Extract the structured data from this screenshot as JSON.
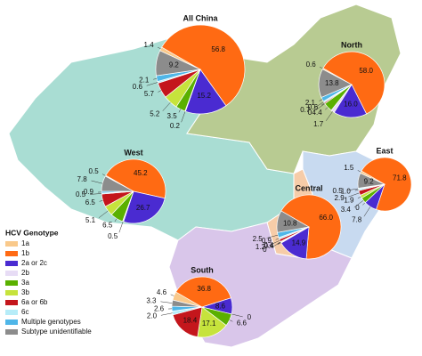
{
  "legend": {
    "title": "HCV Genotype",
    "categories": [
      "1a",
      "1b",
      "2a or 2c",
      "2b",
      "3a",
      "3b",
      "6a or 6b",
      "6c",
      "Multiple genotypes",
      "Subtype unidentifiable"
    ],
    "colors": [
      "#f9c98b",
      "#ff6a13",
      "#4a2bd1",
      "#e7dcf5",
      "#5ab000",
      "#c6e33c",
      "#c4161c",
      "#b6ecf8",
      "#4fb6e8",
      "#8c8c8c"
    ]
  },
  "chart_data": [
    {
      "type": "pie",
      "title": "All China",
      "values": [
        1.4,
        56.8,
        15.2,
        0.2,
        3.5,
        5.2,
        5.7,
        0.6,
        2.1,
        9.2
      ],
      "value_labels": [
        "1.4",
        "56.8",
        "15.2",
        "0.2",
        "3.5",
        "5.2",
        "5.7",
        "0.6",
        "2.1",
        "9.2"
      ]
    },
    {
      "type": "pie",
      "title": "North",
      "values": [
        0.6,
        58.0,
        16.0,
        1.7,
        4.4,
        0,
        0.6,
        0.7,
        2.1,
        13.8
      ],
      "value_labels": [
        "0.6",
        "58.0",
        "16.0",
        "1.7",
        "4.4",
        "0",
        "0.6",
        "0.7",
        "2.1",
        "13.8"
      ]
    },
    {
      "type": "pie",
      "title": "West",
      "values": [
        0.5,
        45.2,
        26.7,
        0.5,
        6.5,
        5.1,
        6.5,
        0.5,
        0.9,
        7.8
      ],
      "value_labels": [
        "0.5",
        "45.2",
        "26.7",
        "0.5",
        "6.5",
        "5.1",
        "6.5",
        "0.5",
        "0.9",
        "7.8"
      ]
    },
    {
      "type": "pie",
      "title": "East",
      "values": [
        1.5,
        71.8,
        7.8,
        0,
        3.4,
        1.9,
        2.9,
        1.0,
        0.5,
        9.2
      ],
      "value_labels": [
        "1.5",
        "71.8",
        "7.8",
        "0",
        "3.4",
        "1.9",
        "2.9",
        "1.0",
        "0.5",
        "9.2"
      ]
    },
    {
      "type": "pie",
      "title": "Central",
      "values": [
        null,
        66.0,
        14.9,
        0.4,
        0,
        0.4,
        1.2,
        0.9,
        2.5,
        10.8
      ],
      "value_labels": [
        null,
        "66.0",
        "14.9",
        "0.4",
        "0",
        "0.4",
        "1.2",
        "0.9",
        "2.5",
        "10.8"
      ]
    },
    {
      "type": "pie",
      "title": "South",
      "values": [
        4.6,
        36.8,
        8.6,
        0,
        6.6,
        17.1,
        18.4,
        2.0,
        2.6,
        3.3
      ],
      "value_labels": [
        "4.6",
        "36.8",
        "8.6",
        "0",
        "6.6",
        "17.1",
        "18.4",
        "2.0",
        "2.6",
        "3.3"
      ]
    }
  ]
}
